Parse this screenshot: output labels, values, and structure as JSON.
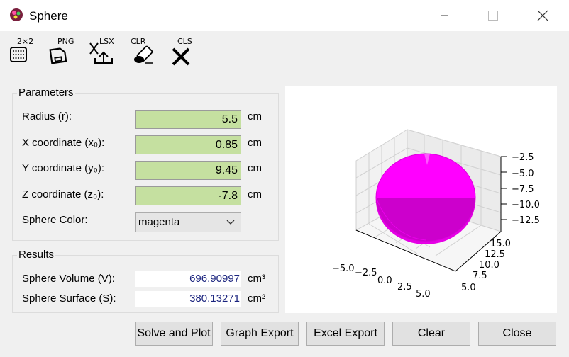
{
  "window": {
    "title": "Sphere",
    "icon": "app-ball-icon"
  },
  "toolbar": {
    "tools": [
      {
        "label": "2×2",
        "icon": "abacus-icon"
      },
      {
        "label": "PNG",
        "icon": "save-disk-icon"
      },
      {
        "label": "LSX",
        "icon": "excel-export-icon"
      },
      {
        "label": "CLR",
        "icon": "eraser-icon"
      },
      {
        "label": "CLS",
        "icon": "close-x-icon"
      }
    ]
  },
  "parameters": {
    "title": "Parameters",
    "fields": [
      {
        "label": "Radius (r):",
        "value": "5.5",
        "unit": "cm"
      },
      {
        "label": "X coordinate (x₀):",
        "value": "0.85",
        "unit": "cm"
      },
      {
        "label": "Y coordinate (y₀):",
        "value": "9.45",
        "unit": "cm"
      },
      {
        "label": "Z coordinate (z₀):",
        "value": "-7.8",
        "unit": "cm"
      }
    ],
    "color_label": "Sphere Color:",
    "color_value": "magenta"
  },
  "results": {
    "title": "Results",
    "volume_label": "Sphere Volume (V):",
    "volume_value": "696.90997",
    "volume_unit": "cm³",
    "surface_label": "Sphere Surface (S):",
    "surface_value": "380.13271",
    "surface_unit": "cm²"
  },
  "plot": {
    "sphere_color": "#ff00ff",
    "x_ticks": [
      "−5.0",
      "−2.5",
      "0.0",
      "2.5",
      "5.0"
    ],
    "y_ticks": [
      "15.0",
      "12.5",
      "10.0",
      "7.5",
      "5.0"
    ],
    "z_ticks": [
      "−2.5",
      "−5.0",
      "−7.5",
      "−10.0",
      "−12.5"
    ]
  },
  "buttons": {
    "solve": "Solve and Plot",
    "graph_export": "Graph Export",
    "excel_export": "Excel Export",
    "clear": "Clear",
    "close": "Close"
  }
}
